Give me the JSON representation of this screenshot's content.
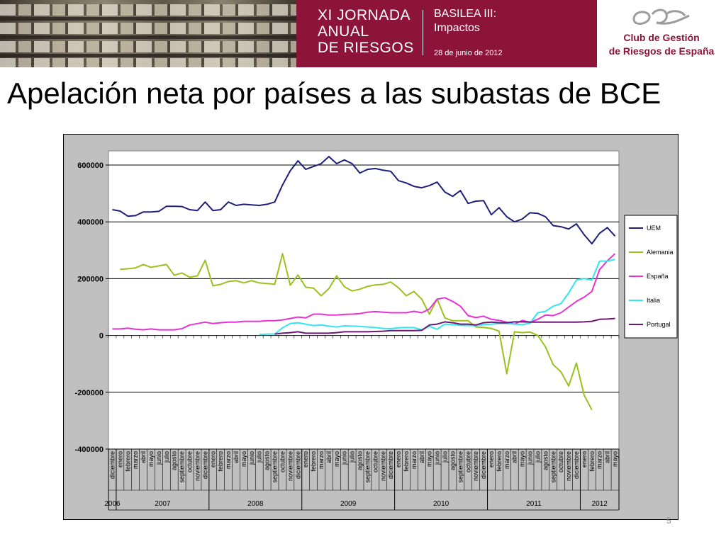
{
  "banner": {
    "event_title": "XI JORNADA\nANUAL\nDE RIESGOS",
    "event_subtitle": "BASILEA III:\nImpactos",
    "event_date": "28 de junio de 2012",
    "organization": "Club de Gestión\nde Riesgos de España",
    "colors": {
      "brand": "#8b1438",
      "logo": "#9c9c9c"
    }
  },
  "slide": {
    "title": "Apelación neta por países a las subastas de BCE",
    "number": "5"
  },
  "chart_data": {
    "type": "line",
    "title": "",
    "xlabel": "",
    "ylabel": "",
    "ylim": [
      -400000,
      650000
    ],
    "yticks": [
      600000,
      400000,
      200000,
      0,
      -200000,
      -400000
    ],
    "ytick_labels": [
      "600000",
      "400000",
      "200000",
      "0",
      "-200000",
      "-400000"
    ],
    "grid": "horizontal",
    "legend_position": "right",
    "categories": [
      "diciembre",
      "enero",
      "febrero",
      "marzo",
      "abril",
      "mayo",
      "junio",
      "julio",
      "agosto",
      "septiembre",
      "octubre",
      "noviembre",
      "diciembre",
      "enero",
      "febrero",
      "marzo",
      "abril",
      "mayo",
      "junio",
      "julio",
      "agosto",
      "septiembre",
      "octubre",
      "noviembre",
      "diciembre",
      "enero",
      "febrero",
      "marzo",
      "abril",
      "mayo",
      "junio",
      "julio",
      "agosto",
      "septiembre",
      "octubre",
      "noviembre",
      "diciembre",
      "enero",
      "febrero",
      "marzo",
      "abril",
      "mayo",
      "junio",
      "julio",
      "agosto",
      "septiembre",
      "octubre",
      "noviembre",
      "diciembre",
      "enero",
      "febrero",
      "marzo",
      "abril",
      "mayo",
      "junio",
      "julio",
      "agosto",
      "septiembre",
      "octubre",
      "noviembre",
      "diciembre",
      "enero",
      "febrero",
      "marzo",
      "abril",
      "mayo"
    ],
    "years": [
      {
        "label": "2006",
        "start": 0,
        "end": 0
      },
      {
        "label": "2007",
        "start": 1,
        "end": 12
      },
      {
        "label": "2008",
        "start": 13,
        "end": 24
      },
      {
        "label": "2009",
        "start": 25,
        "end": 36
      },
      {
        "label": "2010",
        "start": 37,
        "end": 48
      },
      {
        "label": "2011",
        "start": 49,
        "end": 60
      },
      {
        "label": "2012",
        "start": 61,
        "end": 65
      }
    ],
    "series": [
      {
        "name": "UEM",
        "color": "#1f1f7a",
        "values": [
          443000,
          438000,
          420000,
          422000,
          435000,
          435000,
          437000,
          455000,
          455000,
          454000,
          443000,
          440000,
          470000,
          440000,
          443000,
          470000,
          458000,
          462000,
          460000,
          458000,
          462000,
          470000,
          530000,
          580000,
          615000,
          585000,
          595000,
          605000,
          630000,
          605000,
          618000,
          605000,
          572000,
          585000,
          588000,
          582000,
          578000,
          545000,
          537000,
          525000,
          520000,
          528000,
          540000,
          505000,
          490000,
          510000,
          465000,
          473000,
          475000,
          425000,
          450000,
          418000,
          400000,
          410000,
          432000,
          430000,
          418000,
          387000,
          383000,
          375000,
          393000,
          355000,
          323000,
          360000,
          380000,
          350000
        ]
      },
      {
        "name": "Alemania",
        "color": "#99c21c",
        "values": [
          null,
          233000,
          235000,
          238000,
          250000,
          240000,
          245000,
          250000,
          212000,
          220000,
          205000,
          210000,
          265000,
          175000,
          180000,
          190000,
          193000,
          185000,
          193000,
          185000,
          183000,
          180000,
          288000,
          177000,
          213000,
          170000,
          167000,
          140000,
          165000,
          210000,
          172000,
          157000,
          163000,
          173000,
          178000,
          180000,
          188000,
          168000,
          140000,
          155000,
          128000,
          75000,
          128000,
          62000,
          52000,
          52000,
          52000,
          30000,
          28000,
          25000,
          15000,
          -135000,
          13000,
          10000,
          12000,
          0,
          -40000,
          -103000,
          -128000,
          -178000,
          -97000,
          -210000,
          -262000,
          null,
          null,
          null
        ]
      },
      {
        "name": "España",
        "color": "#e632d4",
        "values": [
          23000,
          23000,
          26000,
          22000,
          20000,
          23000,
          20000,
          20000,
          20000,
          24000,
          37000,
          42000,
          47000,
          42000,
          45000,
          47000,
          47000,
          50000,
          50000,
          50000,
          52000,
          52000,
          55000,
          60000,
          65000,
          62000,
          75000,
          75000,
          72000,
          72000,
          74000,
          75000,
          77000,
          82000,
          84000,
          82000,
          80000,
          80000,
          80000,
          85000,
          80000,
          93000,
          128000,
          133000,
          120000,
          103000,
          70000,
          63000,
          68000,
          57000,
          53000,
          47000,
          40000,
          53000,
          47000,
          57000,
          72000,
          70000,
          80000,
          100000,
          120000,
          135000,
          155000,
          232000,
          263000,
          288000
        ]
      },
      {
        "name": "Italia",
        "color": "#33e6ee",
        "values": [
          null,
          null,
          null,
          null,
          null,
          null,
          null,
          null,
          null,
          null,
          null,
          null,
          null,
          null,
          null,
          null,
          null,
          null,
          null,
          3000,
          5000,
          5000,
          27000,
          42000,
          45000,
          40000,
          35000,
          37000,
          33000,
          30000,
          34000,
          33000,
          32000,
          30000,
          28000,
          25000,
          24000,
          27000,
          28000,
          28000,
          20000,
          32000,
          22000,
          40000,
          38000,
          36000,
          35000,
          35000,
          38000,
          40000,
          42000,
          42000,
          40000,
          38000,
          43000,
          80000,
          85000,
          103000,
          112000,
          150000,
          195000,
          200000,
          195000,
          262000,
          262000,
          268000
        ]
      },
      {
        "name": "Portugal",
        "color": "#6a1a70",
        "values": [
          null,
          null,
          null,
          null,
          null,
          null,
          null,
          null,
          null,
          null,
          null,
          null,
          null,
          null,
          null,
          null,
          null,
          null,
          null,
          null,
          null,
          5000,
          8000,
          10000,
          13000,
          8000,
          8000,
          8000,
          8000,
          10000,
          13000,
          13000,
          13000,
          13000,
          14000,
          15000,
          17000,
          17000,
          17000,
          17000,
          18000,
          37000,
          40000,
          48000,
          45000,
          40000,
          40000,
          37000,
          45000,
          47000,
          45000,
          45000,
          48000,
          48000,
          47000,
          47000,
          47000,
          47000,
          47000,
          47000,
          47000,
          48000,
          50000,
          57000,
          58000,
          60000
        ]
      }
    ]
  }
}
